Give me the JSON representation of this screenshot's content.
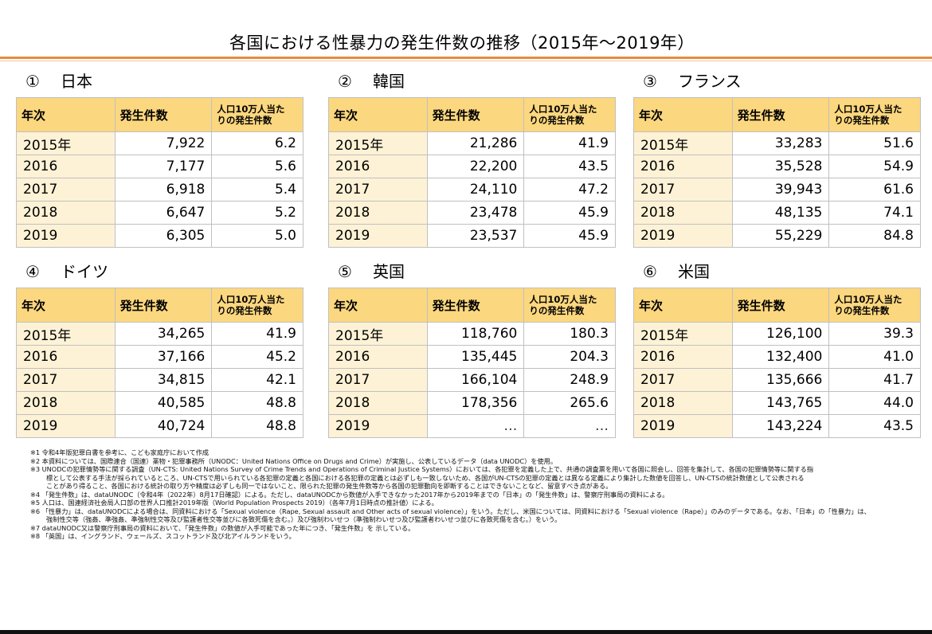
{
  "title": "各国における性暴力の発生件数の推移（2015年～2019年）",
  "headers": {
    "year": "年次",
    "count": "発生件数",
    "rate_line1": "人口10万人当た",
    "rate_line2": "りの発生件数"
  },
  "countries": [
    {
      "num": "①",
      "name": "日本",
      "rows": [
        [
          "2015年",
          "7,922",
          "6.2"
        ],
        [
          "2016",
          "7,177",
          "5.6"
        ],
        [
          "2017",
          "6,918",
          "5.4"
        ],
        [
          "2018",
          "6,647",
          "5.2"
        ],
        [
          "2019",
          "6,305",
          "5.0"
        ]
      ]
    },
    {
      "num": "②",
      "name": "韓国",
      "rows": [
        [
          "2015年",
          "21,286",
          "41.9"
        ],
        [
          "2016",
          "22,200",
          "43.5"
        ],
        [
          "2017",
          "24,110",
          "47.2"
        ],
        [
          "2018",
          "23,478",
          "45.9"
        ],
        [
          "2019",
          "23,537",
          "45.9"
        ]
      ]
    },
    {
      "num": "③",
      "name": "フランス",
      "rows": [
        [
          "2015年",
          "33,283",
          "51.6"
        ],
        [
          "2016",
          "35,528",
          "54.9"
        ],
        [
          "2017",
          "39,943",
          "61.6"
        ],
        [
          "2018",
          "48,135",
          "74.1"
        ],
        [
          "2019",
          "55,229",
          "84.8"
        ]
      ]
    },
    {
      "num": "④",
      "name": "ドイツ",
      "rows": [
        [
          "2015年",
          "34,265",
          "41.9"
        ],
        [
          "2016",
          "37,166",
          "45.2"
        ],
        [
          "2017",
          "34,815",
          "42.1"
        ],
        [
          "2018",
          "40,585",
          "48.8"
        ],
        [
          "2019",
          "40,724",
          "48.8"
        ]
      ]
    },
    {
      "num": "⑤",
      "name": "英国",
      "rows": [
        [
          "2015年",
          "118,760",
          "180.3"
        ],
        [
          "2016",
          "135,445",
          "204.3"
        ],
        [
          "2017",
          "166,104",
          "248.9"
        ],
        [
          "2018",
          "178,356",
          "265.6"
        ],
        [
          "2019",
          "…",
          "…"
        ]
      ]
    },
    {
      "num": "⑥",
      "name": "米国",
      "rows": [
        [
          "2015年",
          "126,100",
          "39.3"
        ],
        [
          "2016",
          "132,400",
          "41.0"
        ],
        [
          "2017",
          "135,666",
          "41.7"
        ],
        [
          "2018",
          "143,765",
          "44.0"
        ],
        [
          "2019",
          "143,224",
          "43.5"
        ]
      ]
    }
  ],
  "notes": [
    "※1  令和4年版犯罪白書を参考に、こども家庭庁において作成",
    "※2  本資料については、国際連合（国連）薬物・犯罪事務所（UNODC：United Nations Office on Drugs and Crime）が実施し、公表しているデータ（data UNODC）を使用。",
    "※3  UNODCの犯罪情勢等に関する調査（UN-CTS: United Nations Survey of Crime Trends and Operations of Criminal Justice Systems）においては、各犯罪を定義した上で、共通の調査票を用いて各国に照会し、回答を集計して、各国の犯罪情勢等に関する指",
    "標として公表する手法が採られているところ、UN-CTSで用いられている各犯罪の定義と各国における各犯罪の定義とは必ずしも一致しないため、各国がUN-CTSの犯罪の定義とは異なる定義により集計した数値を回答し、UN-CTSの統計数値として公表される",
    "ことがあり得ること、各国における統計の取り方や精度は必ずしも同一ではないこと、限られた犯罪の発生件数等から各国の犯罪動向を即断することはできないことなど、留意すべき点がある。",
    "※4 「発生件数」は、dataUNODC（令和4年（2022年）8月17日確認）による。ただし、dataUNODCから数値が入手できなかった2017年から2019年までの「日本」の「発生件数」は、警察庁刑事局の資料による。",
    "※5  人口は、国連経済社会局人口部の世界人口推計2019年版（World Population Prospects 2019）（各年7月1日時点の推計値）による。",
    "※6 「性暴力」は、dataUNODCによる場合は、同資料における「Sexual violence（Rape, Sexual assault and Other acts of sexual violence）」をいう。ただし、米国については、同資料における「Sexual violence（Rape）」のみのデータである。なお、「日本」の「性暴力」は、",
    "強制性交等（強姦、準強姦、準強制性交等及び監護者性交等並びに各致死傷を含む。）及び強制わいせつ（準強制わいせつ及び監護者わいせつ並びに各致死傷を含む。）をいう。",
    "※7  dataUNODC又は警察庁刑事局の資料において、「発生件数」の数値が入手可能であった年につき、「発生件数」を 示している。",
    "※8 「英国」は、イングランド、ウェールズ、スコットランド及び北アイルランドをいう。"
  ]
}
